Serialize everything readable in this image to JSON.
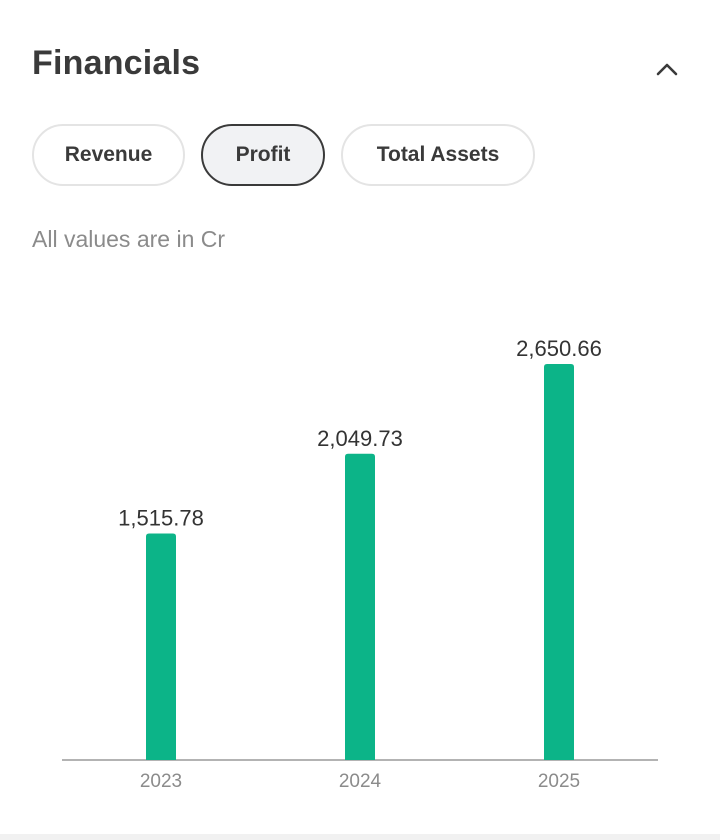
{
  "section": {
    "title": "Financials",
    "collapse_icon": "chevron-up-icon"
  },
  "tabs": [
    {
      "label": "Revenue",
      "active": false
    },
    {
      "label": "Profit",
      "active": true
    },
    {
      "label": "Total Assets",
      "active": false
    }
  ],
  "note": "All values are in Cr",
  "colors": {
    "bar": "#0cb488",
    "axis": "#9a9a9a"
  },
  "chart_data": {
    "type": "bar",
    "categories": [
      "2023",
      "2024",
      "2025"
    ],
    "values": [
      1515.78,
      2049.73,
      2650.66
    ],
    "data_labels": [
      "1,515.78",
      "2,049.73",
      "2,650.66"
    ],
    "title": "",
    "xlabel": "",
    "ylabel": "",
    "grid": false
  }
}
